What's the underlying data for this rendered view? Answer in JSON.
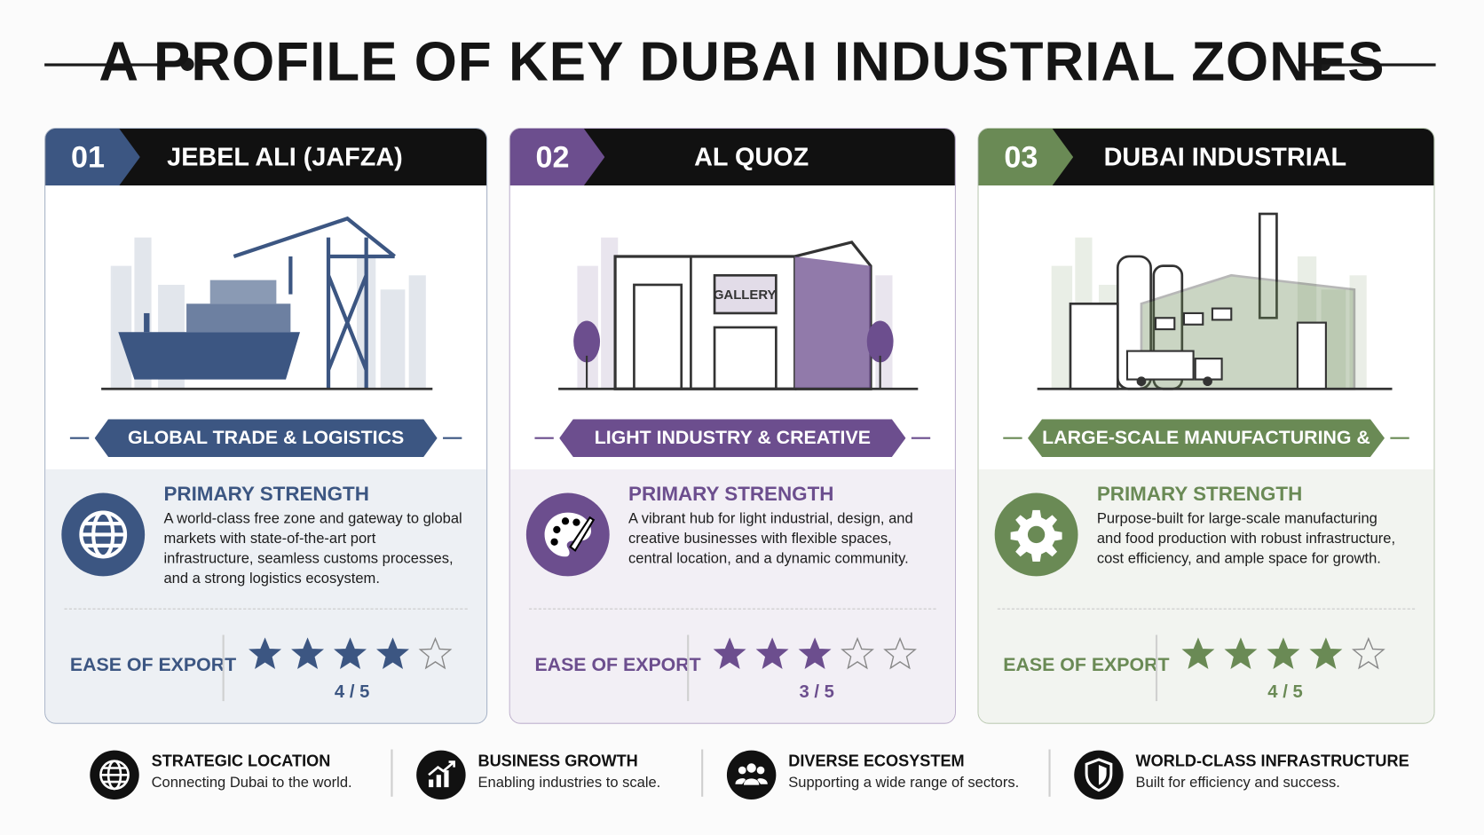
{
  "header": {
    "title": "A PROFILE OF KEY DUBAI INDUSTRIAL ZONES"
  },
  "zones": [
    {
      "number": "01",
      "name": "JEBEL ALI (JAFZA)",
      "color": "#3c5682",
      "tagline": "GLOBAL TRADE & LOGISTICS",
      "strength_title": "PRIMARY STRENGTH",
      "strength_text": "A world-class free zone and gateway to global markets with state-of-the-art port infrastructure, seamless customs processes, and a strong logistics ecosystem.",
      "rating_title": "EASE OF EXPORT",
      "rating": 4,
      "rating_max": 5,
      "rating_label": "4 / 5"
    },
    {
      "number": "02",
      "name": "AL QUOZ",
      "color": "#6c4e8e",
      "tagline": "LIGHT INDUSTRY & CREATIVE SPACES",
      "illustration_sign": "GALLERY",
      "strength_title": "PRIMARY STRENGTH",
      "strength_text": "A vibrant hub for light industrial, design, and creative businesses with flexible spaces, central location, and a dynamic community.",
      "rating_title": "EASE OF EXPORT",
      "rating": 3,
      "rating_max": 5,
      "rating_label": "3 / 5"
    },
    {
      "number": "03",
      "name": "DUBAI INDUSTRIAL CITY",
      "color": "#6a8a55",
      "tagline": "LARGE-SCALE MANUFACTURING & FOOD POWER",
      "strength_title": "PRIMARY STRENGTH",
      "strength_text": "Purpose-built for large-scale manufacturing and food production with robust infrastructure, cost efficiency, and ample space for growth.",
      "rating_title": "EASE OF EXPORT",
      "rating": 4,
      "rating_max": 5,
      "rating_label": "4 / 5"
    }
  ],
  "features": [
    {
      "title": "STRATEGIC LOCATION",
      "text": "Connecting Dubai to the world."
    },
    {
      "title": "BUSINESS GROWTH",
      "text": "Enabling industries to scale."
    },
    {
      "title": "DIVERSE ECOSYSTEM",
      "text": "Supporting a wide range of sectors."
    },
    {
      "title": "WORLD-CLASS INFRASTRUCTURE",
      "text": "Built for efficiency and success."
    }
  ]
}
